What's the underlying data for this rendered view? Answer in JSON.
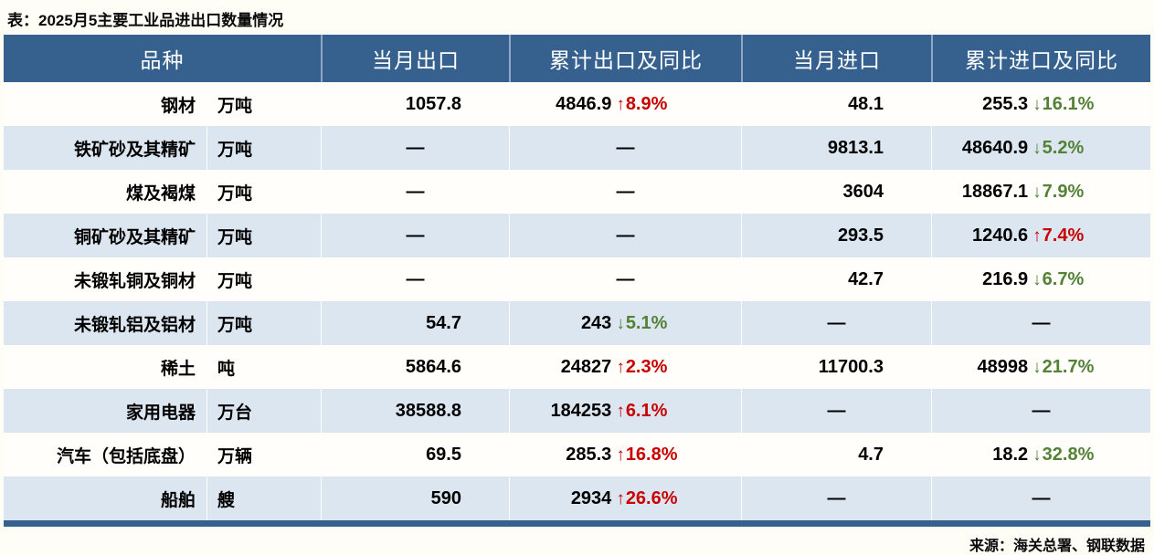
{
  "title": "表：2025月5主要工业品进出口数量情况",
  "source": "来源：海关总署、钢联数据",
  "icons": {
    "up_arrow": "↑",
    "down_arrow": "↓"
  },
  "colors": {
    "header_bg": "#36618E",
    "row_bg": "#FFFEFB",
    "row_alt_bg": "#DCE6F1",
    "bottom_bar": "#36618E",
    "up": "#C80000",
    "down": "#538135",
    "page_bg": "#FEFDF6",
    "header_text": "#FFFFFF"
  },
  "chart_data": {
    "type": "table",
    "title": "表：2025月5主要工业品进出口数量情况",
    "columns": [
      "品种",
      "当月出口",
      "累计出口及同比",
      "当月进口",
      "累计进口及同比"
    ],
    "rows": [
      {
        "name": "钢材",
        "unit": "万吨",
        "export_month": "1057.8",
        "export_cum": {
          "value": "4846.9",
          "dir": "up",
          "pct": "8.9%"
        },
        "import_month": "48.1",
        "import_cum": {
          "value": "255.3",
          "dir": "down",
          "pct": "16.1%"
        }
      },
      {
        "name": "铁矿砂及其精矿",
        "unit": "万吨",
        "export_month": "—",
        "export_cum": "—",
        "import_month": "9813.1",
        "import_cum": {
          "value": "48640.9",
          "dir": "down",
          "pct": "5.2%"
        }
      },
      {
        "name": "煤及褐煤",
        "unit": "万吨",
        "export_month": "—",
        "export_cum": "—",
        "import_month": "3604",
        "import_cum": {
          "value": "18867.1",
          "dir": "down",
          "pct": "7.9%"
        }
      },
      {
        "name": "铜矿砂及其精矿",
        "unit": "万吨",
        "export_month": "—",
        "export_cum": "—",
        "import_month": "293.5",
        "import_cum": {
          "value": "1240.6",
          "dir": "up",
          "pct": "7.4%"
        }
      },
      {
        "name": "未锻轧铜及铜材",
        "unit": "万吨",
        "export_month": "—",
        "export_cum": "—",
        "import_month": "42.7",
        "import_cum": {
          "value": "216.9",
          "dir": "down",
          "pct": "6.7%"
        }
      },
      {
        "name": "未锻轧铝及铝材",
        "unit": "万吨",
        "export_month": "54.7",
        "export_cum": {
          "value": "243",
          "dir": "down",
          "pct": "5.1%"
        },
        "import_month": "—",
        "import_cum": "—"
      },
      {
        "name": "稀土",
        "unit": "吨",
        "export_month": "5864.6",
        "export_cum": {
          "value": "24827",
          "dir": "up",
          "pct": "2.3%"
        },
        "import_month": "11700.3",
        "import_cum": {
          "value": "48998",
          "dir": "down",
          "pct": "21.7%"
        }
      },
      {
        "name": "家用电器",
        "unit": "万台",
        "export_month": "38588.8",
        "export_cum": {
          "value": "184253",
          "dir": "up",
          "pct": "6.1%"
        },
        "import_month": "—",
        "import_cum": "—"
      },
      {
        "name": "汽车（包括底盘）",
        "unit": "万辆",
        "export_month": "69.5",
        "export_cum": {
          "value": "285.3",
          "dir": "up",
          "pct": "16.8%"
        },
        "import_month": "4.7",
        "import_cum": {
          "value": "18.2",
          "dir": "down",
          "pct": "32.8%"
        }
      },
      {
        "name": "船舶",
        "unit": "艘",
        "export_month": "590",
        "export_cum": {
          "value": "2934",
          "dir": "up",
          "pct": "26.6%"
        },
        "import_month": "—",
        "import_cum": "—"
      }
    ]
  }
}
